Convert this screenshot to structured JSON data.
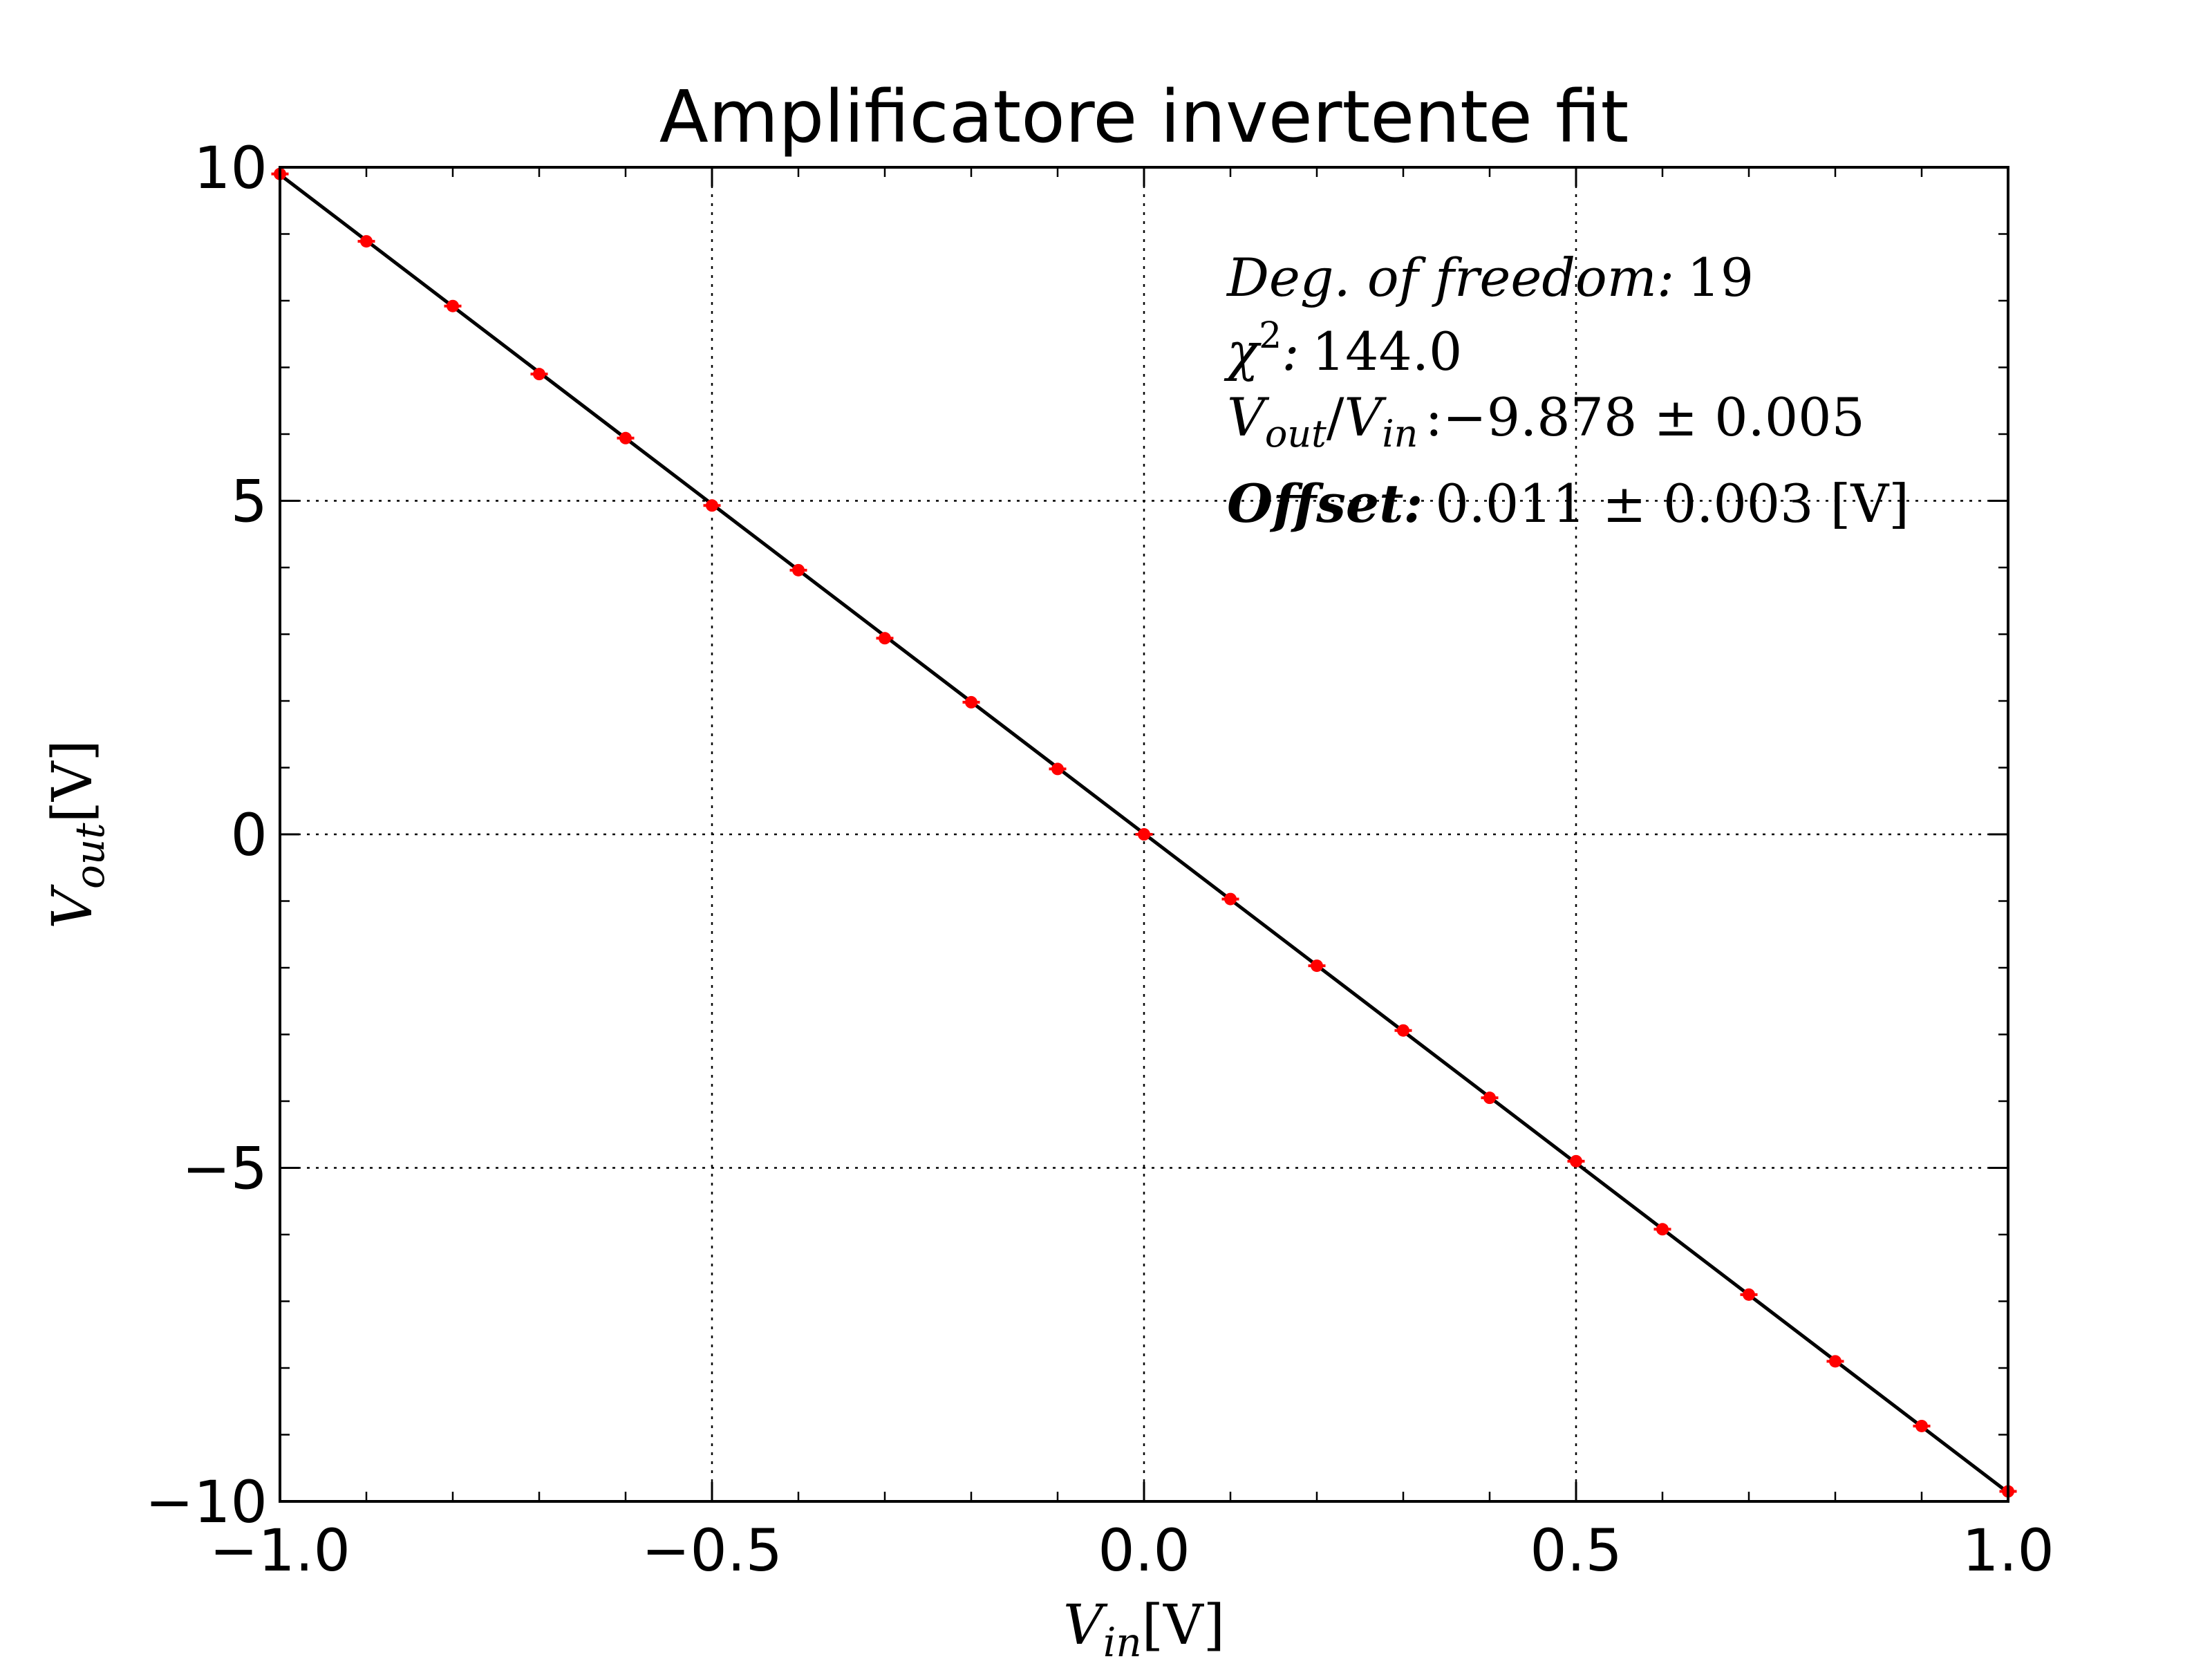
{
  "chart_data": {
    "type": "scatter",
    "title": "Amplificatore invertente fit",
    "xlabel": {
      "base": "V",
      "sub": "in",
      "unit": "[V]"
    },
    "ylabel": {
      "base": "V",
      "sub": "out",
      "unit": "[V]"
    },
    "xlim": [
      -1.0,
      1.0
    ],
    "ylim": [
      -10,
      10
    ],
    "xticks": [
      -1.0,
      -0.5,
      0.0,
      0.5,
      1.0
    ],
    "xtick_labels": [
      "−1.0",
      "−0.5",
      "0.0",
      "0.5",
      "1.0"
    ],
    "yticks": [
      -10,
      -5,
      0,
      5,
      10
    ],
    "ytick_labels": [
      "−10",
      "−5",
      "0",
      "5",
      "10"
    ],
    "grid": true,
    "series": [
      {
        "kind": "points_with_errorbars",
        "color": "#ff0000",
        "x": [
          -1.0,
          -0.9,
          -0.8,
          -0.7,
          -0.6,
          -0.5,
          -0.4,
          -0.3,
          -0.2,
          -0.1,
          0.0,
          0.1,
          0.2,
          0.3,
          0.4,
          0.5,
          0.6,
          0.7,
          0.8,
          0.9,
          1.0
        ],
        "y": [
          9.9,
          8.89,
          7.92,
          6.9,
          5.94,
          4.93,
          3.96,
          2.94,
          1.98,
          0.98,
          0.0,
          -0.97,
          -1.97,
          -2.94,
          -3.95,
          -4.9,
          -5.92,
          -6.9,
          -7.9,
          -8.87,
          -9.85
        ],
        "x_err": 0.01
      },
      {
        "kind": "fit_line",
        "color": "#000000",
        "slope": -9.878,
        "intercept": 0.011
      }
    ],
    "annotation": {
      "dof_label": "Deg. of freedom:",
      "dof_value": "19",
      "chi2_symbol": "χ",
      "chi2_sup": "2",
      "chi2_label": ":",
      "chi2_value": "144.0",
      "ratio_num": "V",
      "ratio_num_sub": "out",
      "ratio_den": "V",
      "ratio_den_sub": "in",
      "ratio_value": ":−9.878 ± 0.005",
      "offset_label": "Offset:",
      "offset_value": "0.011 ± 0.003 [V]"
    }
  }
}
